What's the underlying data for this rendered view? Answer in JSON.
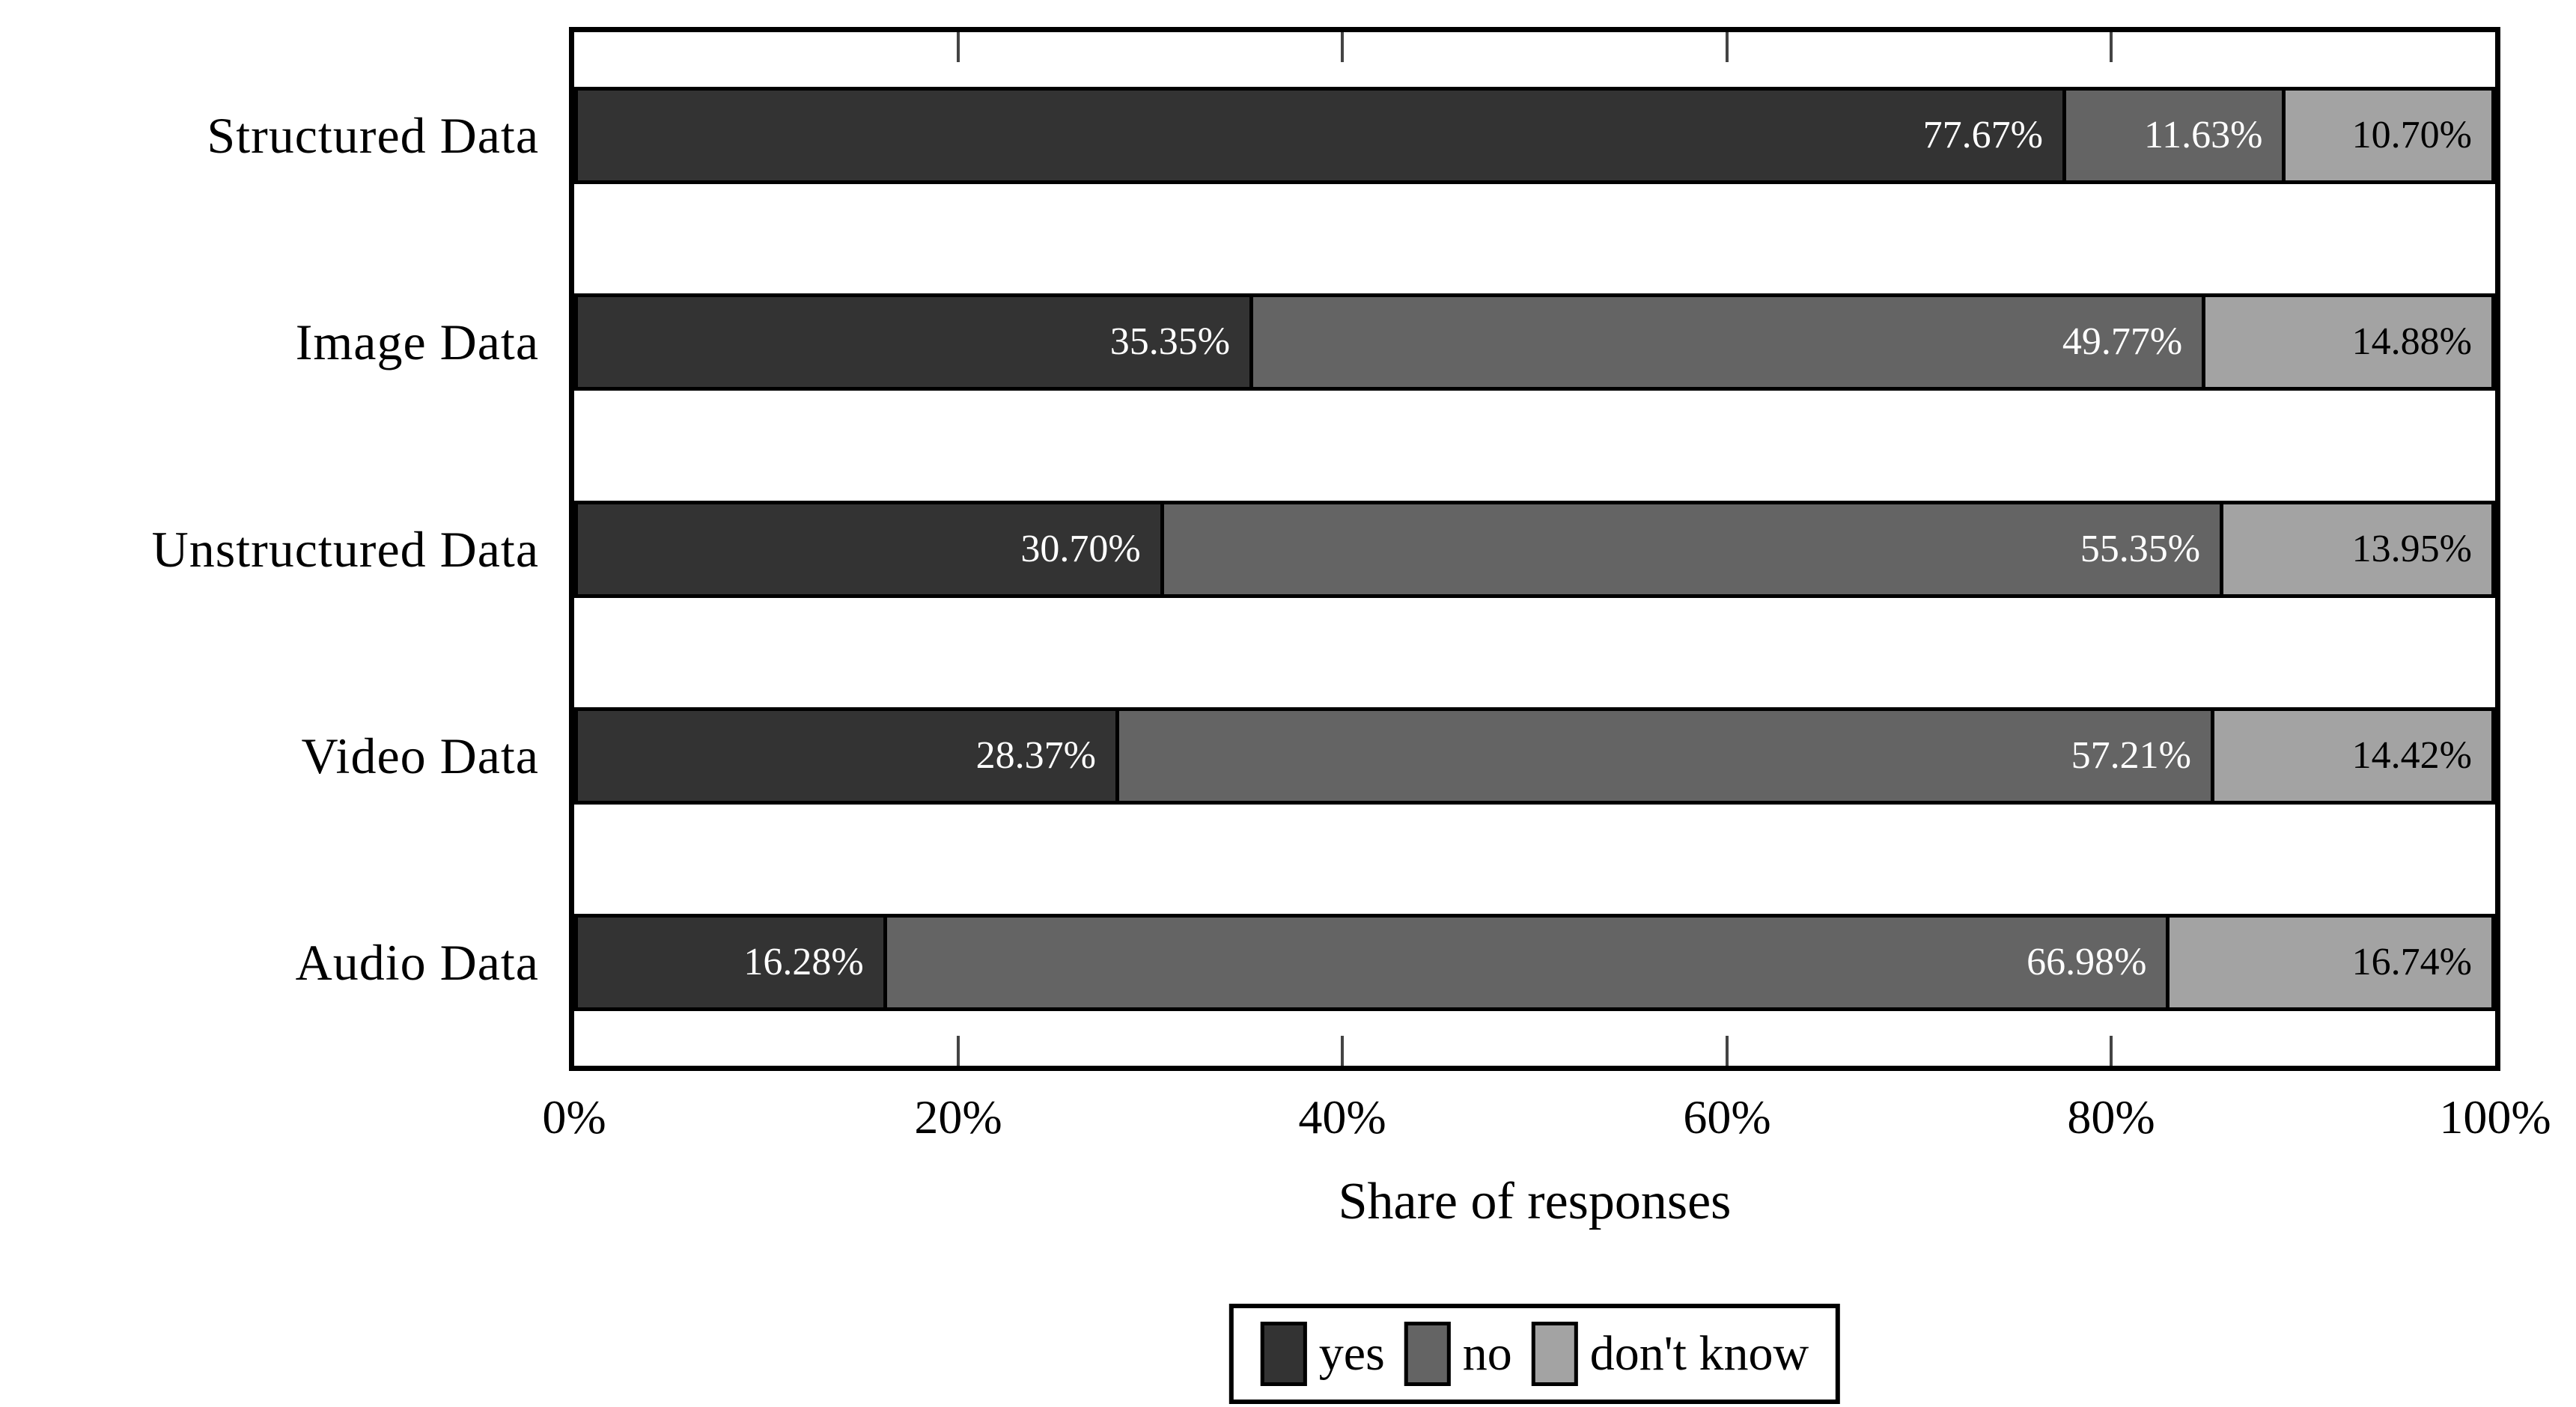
{
  "chart_data": {
    "type": "bar",
    "orientation": "horizontal-stacked",
    "title": "",
    "xlabel": "Share of responses",
    "ylabel": "",
    "xlim": [
      0,
      100
    ],
    "x_tick_labels": [
      "0%",
      "20%",
      "40%",
      "60%",
      "80%",
      "100%"
    ],
    "grid": false,
    "legend_position": "below-plot",
    "categories": [
      "Structured Data",
      "Image Data",
      "Unstructured Data",
      "Video Data",
      "Audio Data"
    ],
    "series": [
      {
        "name": "yes",
        "color": "#333333",
        "label_color": "#ffffff",
        "values": [
          77.67,
          35.35,
          30.7,
          28.37,
          16.28
        ],
        "labels": [
          "77.67%",
          "35.35%",
          "30.70%",
          "28.37%",
          "16.28%"
        ]
      },
      {
        "name": "no",
        "color": "#646464",
        "label_color": "#ffffff",
        "values": [
          11.63,
          49.77,
          55.35,
          57.21,
          66.98
        ],
        "labels": [
          "11.63%",
          "49.77%",
          "55.35%",
          "57.21%",
          "66.98%"
        ]
      },
      {
        "name": "don't know",
        "color": "#a3a3a3",
        "label_color": "#000000",
        "values": [
          10.7,
          14.88,
          13.95,
          14.42,
          16.74
        ],
        "labels": [
          "10.70%",
          "14.88%",
          "13.95%",
          "14.42%",
          "16.74%"
        ]
      }
    ],
    "colors": {
      "axis": "#000000",
      "background": "#ffffff",
      "tick": "#444444"
    }
  }
}
